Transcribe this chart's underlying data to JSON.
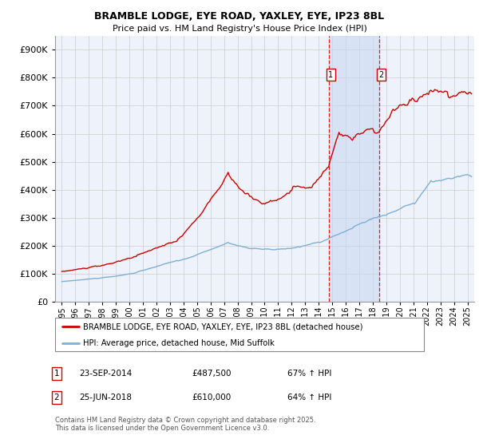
{
  "title": "BRAMBLE LODGE, EYE ROAD, YAXLEY, EYE, IP23 8BL",
  "subtitle": "Price paid vs. HM Land Registry's House Price Index (HPI)",
  "red_label": "BRAMBLE LODGE, EYE ROAD, YAXLEY, EYE, IP23 8BL (detached house)",
  "blue_label": "HPI: Average price, detached house, Mid Suffolk",
  "footnote": "Contains HM Land Registry data © Crown copyright and database right 2025.\nThis data is licensed under the Open Government Licence v3.0.",
  "vline1_date": 2014.73,
  "vline2_date": 2018.48,
  "ylim": [
    0,
    950000
  ],
  "xlim": [
    1994.5,
    2025.5
  ],
  "yticks": [
    0,
    100000,
    200000,
    300000,
    400000,
    500000,
    600000,
    700000,
    800000,
    900000
  ],
  "ytick_labels": [
    "£0",
    "£100K",
    "£200K",
    "£300K",
    "£400K",
    "£500K",
    "£600K",
    "£700K",
    "£800K",
    "£900K"
  ],
  "xticks": [
    1995,
    1996,
    1997,
    1998,
    1999,
    2000,
    2001,
    2002,
    2003,
    2004,
    2005,
    2006,
    2007,
    2008,
    2009,
    2010,
    2011,
    2012,
    2013,
    2014,
    2015,
    2016,
    2017,
    2018,
    2019,
    2020,
    2021,
    2022,
    2023,
    2024,
    2025
  ],
  "bg_color": "#eef2fb",
  "grid_color": "#cccccc",
  "red_color": "#cc0000",
  "blue_color": "#7fafd4",
  "shade_color": "#c8d8f0",
  "ann1_date": "23-SEP-2014",
  "ann1_price": "£487,500",
  "ann1_hpi": "67% ↑ HPI",
  "ann2_date": "25-JUN-2018",
  "ann2_price": "£610,000",
  "ann2_hpi": "64% ↑ HPI"
}
